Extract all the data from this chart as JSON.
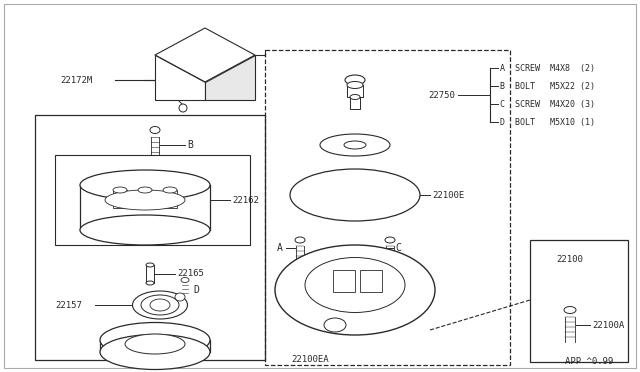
{
  "bg_color": "#ffffff",
  "line_color": "#2a2a2a",
  "text_color": "#2a2a2a",
  "font_family": "monospace",
  "page_label": "APP ^0.99",
  "parts_list_items": [
    {
      "key": "A",
      "desc": "SCREW",
      "size": "M4X8  (2)"
    },
    {
      "key": "B",
      "desc": "BOLT ",
      "size": "M5X22 (2)"
    },
    {
      "key": "C",
      "desc": "SCREW",
      "size": "M4X20 (3)"
    },
    {
      "key": "D",
      "desc": "BOLT ",
      "size": "M5X10 (1)"
    }
  ]
}
